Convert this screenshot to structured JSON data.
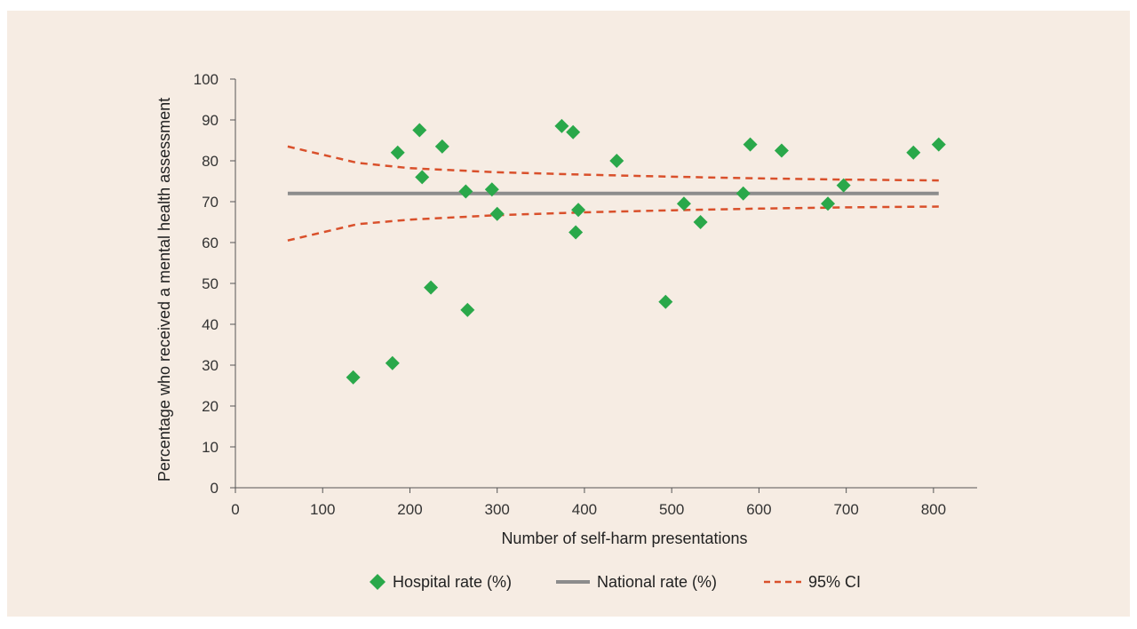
{
  "chart_data": {
    "type": "scatter",
    "xlabel": "Number of self-harm presentations",
    "ylabel": "Percentage who received a mental health assessment",
    "xlim": [
      0,
      850
    ],
    "ylim": [
      0,
      100
    ],
    "x_ticks": [
      0,
      100,
      200,
      300,
      400,
      500,
      600,
      700,
      800
    ],
    "y_ticks": [
      0,
      10,
      20,
      30,
      40,
      50,
      60,
      70,
      80,
      90,
      100
    ],
    "grid": false,
    "legend_position": "bottom",
    "series": [
      {
        "name": "Hospital rate (%)",
        "kind": "scatter",
        "marker": "diamond",
        "color": "#2aa84a",
        "points": [
          [
            135,
            27
          ],
          [
            180,
            30.5
          ],
          [
            186,
            82
          ],
          [
            211,
            87.5
          ],
          [
            214,
            76
          ],
          [
            224,
            49
          ],
          [
            237,
            83.5
          ],
          [
            264,
            72.5
          ],
          [
            266,
            43.5
          ],
          [
            294,
            73
          ],
          [
            300,
            67
          ],
          [
            374,
            88.5
          ],
          [
            387,
            87
          ],
          [
            390,
            62.5
          ],
          [
            393,
            68
          ],
          [
            437,
            80
          ],
          [
            493,
            45.5
          ],
          [
            514,
            69.5
          ],
          [
            533,
            65
          ],
          [
            582,
            72
          ],
          [
            590,
            84
          ],
          [
            626,
            82.5
          ],
          [
            679,
            69.5
          ],
          [
            697,
            74
          ],
          [
            777,
            82
          ],
          [
            806,
            84
          ]
        ]
      },
      {
        "name": "National rate (%)",
        "kind": "line",
        "color": "#8c8c8c",
        "points": [
          [
            60,
            72
          ],
          [
            806,
            72
          ]
        ]
      },
      {
        "name": "95% CI",
        "kind": "dashed",
        "color": "#d9502b",
        "upper": [
          [
            60,
            83.5
          ],
          [
            100,
            81.5
          ],
          [
            140,
            79.5
          ],
          [
            200,
            78.2
          ],
          [
            300,
            77.2
          ],
          [
            400,
            76.6
          ],
          [
            500,
            76.1
          ],
          [
            600,
            75.7
          ],
          [
            700,
            75.4
          ],
          [
            806,
            75.2
          ]
        ],
        "lower": [
          [
            60,
            60.5
          ],
          [
            100,
            62.5
          ],
          [
            140,
            64.5
          ],
          [
            200,
            65.6
          ],
          [
            300,
            66.7
          ],
          [
            400,
            67.4
          ],
          [
            500,
            67.9
          ],
          [
            600,
            68.3
          ],
          [
            700,
            68.6
          ],
          [
            806,
            68.8
          ]
        ]
      }
    ]
  }
}
